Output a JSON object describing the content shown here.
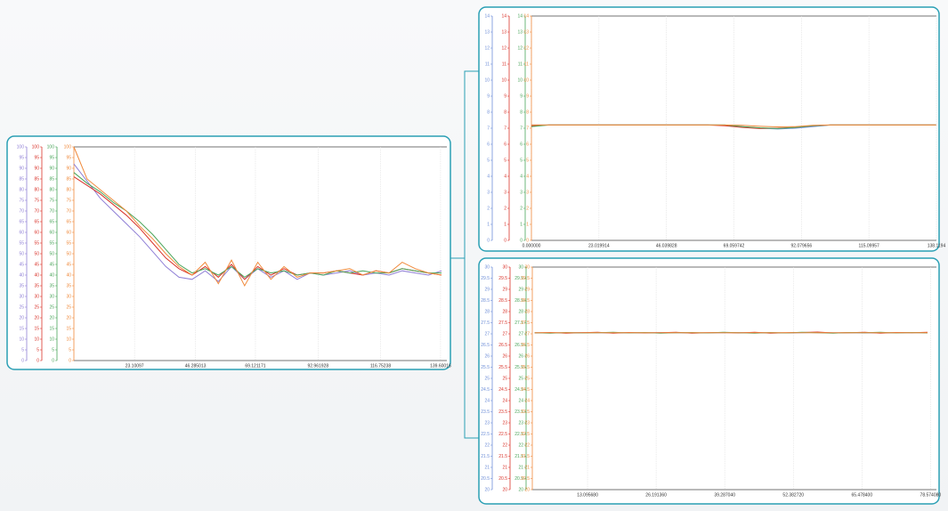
{
  "chart_data": [
    {
      "type": "line",
      "x": [
        0,
        5,
        10,
        15,
        20,
        25,
        30,
        35,
        40,
        45,
        50,
        55,
        60,
        65,
        70,
        75,
        80,
        85,
        90,
        95,
        100,
        105,
        110,
        115,
        120,
        125,
        130,
        135,
        140
      ],
      "series": [
        {
          "color": "#8f7fd6",
          "values": [
            92,
            84,
            76,
            70,
            64,
            58,
            51,
            44,
            39,
            38,
            42,
            37,
            44,
            38,
            43,
            39,
            42,
            38,
            41,
            40,
            41,
            42,
            40,
            41,
            40,
            42,
            41,
            40,
            42
          ]
        },
        {
          "color": "#d9342b",
          "values": [
            86,
            82,
            78,
            73,
            68,
            62,
            55,
            48,
            43,
            40,
            44,
            39,
            45,
            38,
            44,
            40,
            43,
            40,
            41,
            41,
            42,
            41,
            40,
            42,
            41,
            43,
            42,
            41,
            40
          ]
        },
        {
          "color": "#4aa55a",
          "values": [
            88,
            83,
            79,
            74,
            70,
            65,
            59,
            52,
            45,
            41,
            43,
            40,
            44,
            39,
            43,
            41,
            42,
            40,
            41,
            40,
            42,
            41,
            42,
            41,
            41,
            43,
            42,
            41,
            41
          ]
        },
        {
          "color": "#f08a3c",
          "values": [
            100,
            85,
            80,
            75,
            70,
            63,
            57,
            50,
            44,
            40,
            46,
            36,
            47,
            35,
            46,
            38,
            44,
            39,
            41,
            41,
            42,
            43,
            40,
            42,
            41,
            46,
            43,
            41,
            40
          ]
        }
      ],
      "xlim": [
        0,
        142
      ],
      "xticks": [
        {
          "value": 23.10097,
          "label": "23.10097"
        },
        {
          "value": 46.285013,
          "label": "46.285013"
        },
        {
          "value": 69.121171,
          "label": "69.121171"
        },
        {
          "value": 92.961928,
          "label": "92.961928"
        },
        {
          "value": 116.75238,
          "label": "116.75238"
        },
        {
          "value": 139.60016,
          "label": "139.60016"
        }
      ],
      "ylim": [
        0,
        100
      ],
      "yticks": [
        0,
        5,
        10,
        15,
        20,
        25,
        30,
        35,
        40,
        45,
        50,
        55,
        60,
        65,
        70,
        75,
        80,
        85,
        90,
        95,
        100
      ],
      "grid": true
    },
    {
      "type": "line",
      "x": [
        0,
        6,
        12,
        18,
        24,
        30,
        36,
        42,
        48,
        54,
        60,
        66,
        72,
        78,
        84,
        90,
        96,
        102,
        108,
        114,
        120,
        126,
        132,
        138
      ],
      "series": [
        {
          "color": "#6f8fd8",
          "values": [
            7.2,
            7.2,
            7.2,
            7.2,
            7.2,
            7.2,
            7.2,
            7.2,
            7.2,
            7.2,
            7.2,
            7.2,
            7.1,
            7.0,
            6.95,
            7.0,
            7.1,
            7.2,
            7.2,
            7.2,
            7.2,
            7.2,
            7.2,
            7.2
          ]
        },
        {
          "color": "#d9342b",
          "values": [
            7.15,
            7.2,
            7.2,
            7.2,
            7.2,
            7.2,
            7.2,
            7.2,
            7.2,
            7.2,
            7.2,
            7.15,
            7.05,
            6.98,
            7.0,
            7.05,
            7.15,
            7.2,
            7.2,
            7.2,
            7.2,
            7.2,
            7.2,
            7.2
          ]
        },
        {
          "color": "#4aa55a",
          "values": [
            7.1,
            7.2,
            7.2,
            7.2,
            7.2,
            7.2,
            7.2,
            7.2,
            7.2,
            7.2,
            7.2,
            7.2,
            7.1,
            7.02,
            6.98,
            7.05,
            7.15,
            7.2,
            7.2,
            7.2,
            7.2,
            7.2,
            7.2,
            7.2
          ]
        },
        {
          "color": "#f08a3c",
          "values": [
            7.2,
            7.2,
            7.2,
            7.2,
            7.2,
            7.2,
            7.2,
            7.2,
            7.2,
            7.2,
            7.2,
            7.2,
            7.18,
            7.12,
            7.08,
            7.1,
            7.18,
            7.2,
            7.2,
            7.2,
            7.2,
            7.2,
            7.2,
            7.2
          ]
        }
      ],
      "xlim": [
        0,
        138.119484
      ],
      "xticks": [
        {
          "value": 0,
          "label": "0.000000"
        },
        {
          "value": 23.019914,
          "label": "23.019914"
        },
        {
          "value": 46.039828,
          "label": "46.039828"
        },
        {
          "value": 69.059742,
          "label": "69.059742"
        },
        {
          "value": 92.079656,
          "label": "92.079656"
        },
        {
          "value": 115.09957,
          "label": "115.09957"
        },
        {
          "value": 138.119484,
          "label": "138.1194"
        }
      ],
      "ylim": [
        0,
        14
      ],
      "yticks": [
        0,
        1,
        2,
        3,
        4,
        5,
        6,
        7,
        8,
        9,
        10,
        11,
        12,
        13,
        14
      ],
      "grid": true
    },
    {
      "type": "line",
      "x": [
        3,
        6,
        9,
        12,
        15,
        18,
        21,
        24,
        27,
        30,
        33,
        36,
        39,
        42,
        45,
        48,
        51,
        54,
        57,
        60,
        63,
        66,
        69,
        72,
        75,
        78
      ],
      "series": [
        {
          "color": "#6f8fd8",
          "values": [
            27.05,
            27.04,
            27.05,
            27.06,
            27.05,
            27.04,
            27.05,
            27.05,
            27.06,
            27.05,
            27.04,
            27.05,
            27.05,
            27.06,
            27.05,
            27.05,
            27.04,
            27.05,
            27.06,
            27.05,
            27.05,
            27.04,
            27.05,
            27.05,
            27.06,
            27.05
          ]
        },
        {
          "color": "#d9342b",
          "values": [
            27.04,
            27.06,
            27.03,
            27.05,
            27.07,
            27.03,
            27.06,
            27.04,
            27.05,
            27.07,
            27.03,
            27.05,
            27.06,
            27.04,
            27.07,
            27.03,
            27.05,
            27.06,
            27.08,
            27.04,
            27.05,
            27.07,
            27.03,
            27.06,
            27.05,
            27.07
          ]
        },
        {
          "color": "#4aa55a",
          "values": [
            27.05,
            27.03,
            27.06,
            27.04,
            27.05,
            27.07,
            27.04,
            27.06,
            27.03,
            27.05,
            27.06,
            27.04,
            27.07,
            27.05,
            27.03,
            27.06,
            27.04,
            27.07,
            27.05,
            27.03,
            27.06,
            27.05,
            27.07,
            27.04,
            27.06,
            27.04
          ]
        },
        {
          "color": "#f08a3c",
          "values": [
            27.05,
            27.05,
            27.05,
            27.05,
            27.05,
            27.05,
            27.05,
            27.05,
            27.05,
            27.05,
            27.05,
            27.05,
            27.05,
            27.05,
            27.05,
            27.05,
            27.05,
            27.05,
            27.05,
            27.05,
            27.05,
            27.05,
            27.05,
            27.05,
            27.05,
            27.05
          ]
        }
      ],
      "xlim": [
        2.55,
        79.7
      ],
      "xticks": [
        {
          "value": 13.09568,
          "label": "13.095680"
        },
        {
          "value": 26.19136,
          "label": "26.191360"
        },
        {
          "value": 39.28704,
          "label": "39.287040"
        },
        {
          "value": 52.38272,
          "label": "52.382720"
        },
        {
          "value": 65.4784,
          "label": "65.478400"
        },
        {
          "value": 78.57408,
          "label": "78.574080"
        }
      ],
      "ylim": [
        20,
        30
      ],
      "yticks": [
        20,
        20.5,
        21,
        21.5,
        22,
        22.5,
        23,
        23.5,
        24,
        24.5,
        25,
        25.5,
        26,
        26.5,
        27,
        27.5,
        28,
        28.5,
        29,
        29.5,
        30
      ],
      "grid": true
    }
  ]
}
